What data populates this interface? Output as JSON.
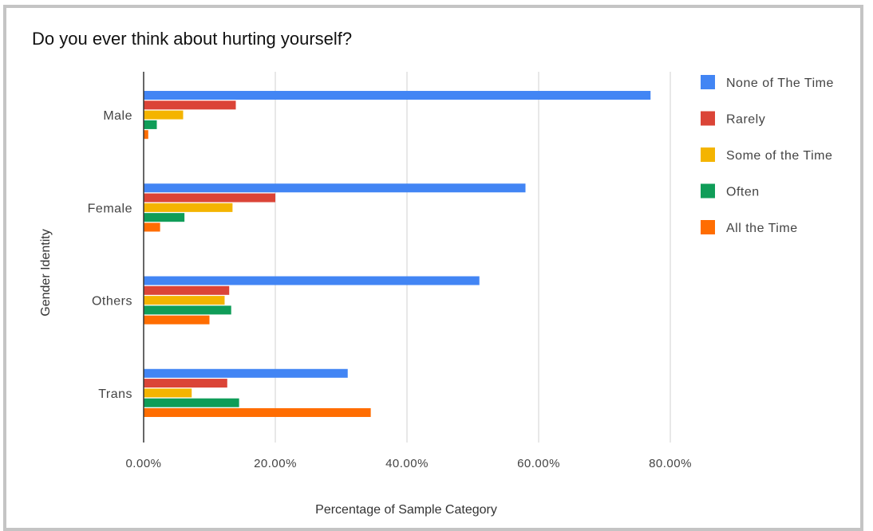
{
  "chart_data": {
    "type": "bar",
    "orientation": "horizontal",
    "title": "Do you ever think about hurting yourself?",
    "xlabel": "Percentage of Sample Category",
    "ylabel": "Gender Identity",
    "categories": [
      "Male",
      "Female",
      "Others",
      "Trans"
    ],
    "series": [
      {
        "name": "None of The Time",
        "color": "#4285f4",
        "values": [
          77.0,
          58.0,
          51.0,
          31.0
        ]
      },
      {
        "name": "Rarely",
        "color": "#db4437",
        "values": [
          14.0,
          20.0,
          13.0,
          12.7
        ]
      },
      {
        "name": "Some of the Time",
        "color": "#f4b400",
        "values": [
          6.0,
          13.5,
          12.3,
          7.3
        ]
      },
      {
        "name": "Often",
        "color": "#0f9d58",
        "values": [
          2.0,
          6.2,
          13.3,
          14.5
        ]
      },
      {
        "name": "All the Time",
        "color": "#ff6d01",
        "values": [
          0.7,
          2.5,
          10.0,
          34.5
        ]
      }
    ],
    "xlim": [
      0,
      80
    ],
    "xticks": [
      "0.00%",
      "20.00%",
      "40.00%",
      "60.00%",
      "80.00%"
    ],
    "grid": true,
    "legend_position": "right"
  }
}
